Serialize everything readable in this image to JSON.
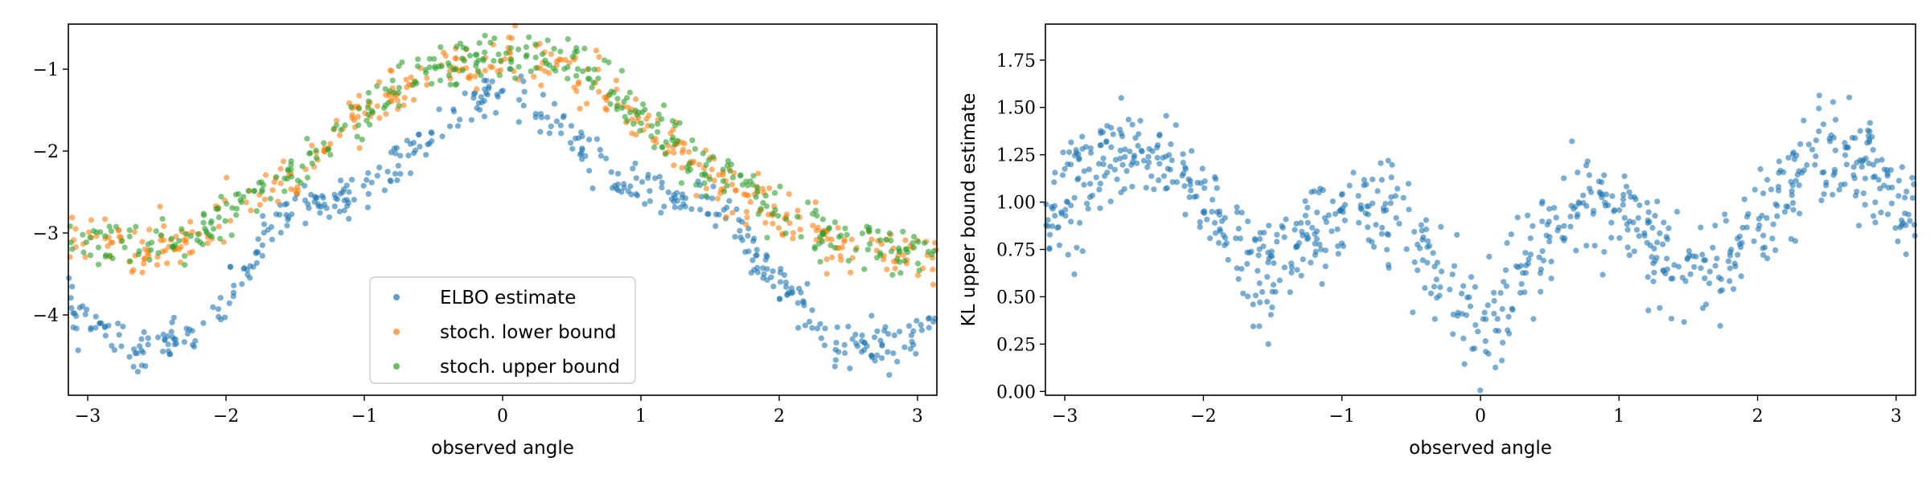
{
  "chart_data": [
    {
      "type": "scatter",
      "xlabel": "observed angle",
      "ylabel": "",
      "xlim": [
        -3.14,
        3.14
      ],
      "ylim": [
        -4.98,
        -0.45
      ],
      "xticks": [
        "−3",
        "−2",
        "−1",
        "0",
        "1",
        "2",
        "3"
      ],
      "xtick_values": [
        -3,
        -2,
        -1,
        0,
        1,
        2,
        3
      ],
      "yticks": [
        "−4",
        "−3",
        "−2",
        "−1"
      ],
      "ytick_values": [
        -4,
        -3,
        -2,
        -1
      ],
      "legend": {
        "placement": "lower center"
      },
      "series": [
        {
          "name": "ELBO estimate",
          "color": "#1f77b4",
          "curve": {
            "x": [
              -3.14,
              -2.6,
              -2.2,
              -2.0,
              -1.6,
              -1.2,
              -0.8,
              -0.4,
              0.0,
              0.4,
              0.8,
              1.2,
              1.6,
              2.0,
              2.4,
              2.8,
              3.14
            ],
            "y": [
              -3.9,
              -4.5,
              -4.2,
              -3.8,
              -2.8,
              -2.6,
              -2.2,
              -1.7,
              -1.15,
              -1.7,
              -2.3,
              -2.55,
              -2.75,
              -3.6,
              -4.35,
              -4.4,
              -4.0
            ]
          },
          "spread": 0.13,
          "points": 450
        },
        {
          "name": "stoch. lower bound",
          "color": "#ff7f0e",
          "curve": {
            "x": [
              -3.14,
              -2.6,
              -2.2,
              -1.9,
              -1.5,
              -1.0,
              -0.5,
              0.0,
              0.5,
              1.0,
              1.5,
              2.0,
              2.5,
              3.14
            ],
            "y": [
              -3.0,
              -3.2,
              -3.1,
              -2.7,
              -2.3,
              -1.6,
              -1.05,
              -0.85,
              -0.95,
              -1.6,
              -2.3,
              -2.8,
              -3.2,
              -3.3
            ]
          },
          "spread": 0.16,
          "points": 400
        },
        {
          "name": "stoch. upper bound",
          "color": "#2ca02c",
          "curve": {
            "x": [
              -3.14,
              -2.6,
              -2.2,
              -1.9,
              -1.5,
              -1.0,
              -0.5,
              0.0,
              0.5,
              1.0,
              1.5,
              2.0,
              2.5,
              3.14
            ],
            "y": [
              -3.05,
              -3.2,
              -3.05,
              -2.65,
              -2.25,
              -1.55,
              -1.0,
              -0.82,
              -0.92,
              -1.55,
              -2.25,
              -2.75,
              -3.1,
              -3.25
            ]
          },
          "spread": 0.15,
          "points": 400
        }
      ]
    },
    {
      "type": "scatter",
      "xlabel": "observed angle",
      "ylabel": "KL upper bound estimate",
      "xlim": [
        -3.14,
        3.14
      ],
      "ylim": [
        -0.02,
        1.94
      ],
      "xticks": [
        "−3",
        "−2",
        "−1",
        "0",
        "1",
        "2",
        "3"
      ],
      "xtick_values": [
        -3,
        -2,
        -1,
        0,
        1,
        2,
        3
      ],
      "yticks": [
        "0.00",
        "0.25",
        "0.50",
        "0.75",
        "1.00",
        "1.25",
        "1.50",
        "1.75"
      ],
      "ytick_values": [
        0,
        0.25,
        0.5,
        0.75,
        1.0,
        1.25,
        1.5,
        1.75
      ],
      "series": [
        {
          "name": "KL upper bound estimate",
          "color": "#1f77b4",
          "curve": {
            "x": [
              -3.14,
              -2.8,
              -2.4,
              -2.0,
              -1.6,
              -1.3,
              -0.9,
              -0.5,
              -0.2,
              0.0,
              0.2,
              0.5,
              0.85,
              1.2,
              1.6,
              2.0,
              2.4,
              2.8,
              3.14
            ],
            "y": [
              0.9,
              1.2,
              1.25,
              1.1,
              0.55,
              0.75,
              1.0,
              0.85,
              0.55,
              0.3,
              0.5,
              0.85,
              1.05,
              0.8,
              0.6,
              0.85,
              1.2,
              1.2,
              0.8
            ]
          },
          "spread": 0.14,
          "points": 800
        }
      ]
    }
  ]
}
